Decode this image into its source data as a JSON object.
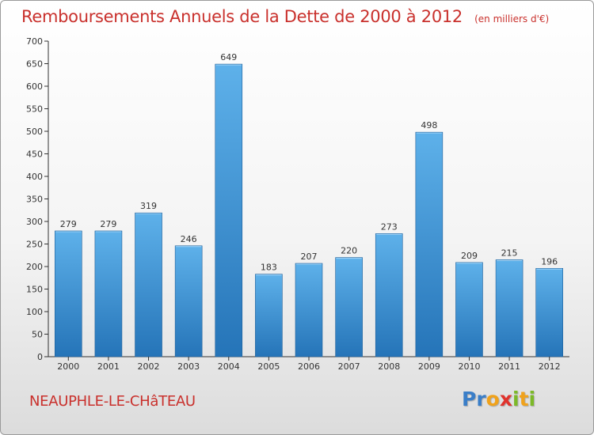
{
  "title": "Remboursements Annuels de la Dette de 2000 à 2012",
  "subtitle": "(en milliers d'€)",
  "commune": "NEAUPHLE-LE-CHâTEAU",
  "logo": {
    "letters": [
      "P",
      "r",
      "o",
      "x",
      "i",
      "t",
      "i"
    ],
    "colors": [
      "#3a7ec8",
      "#3a7ec8",
      "#f0a21b",
      "#e0322c",
      "#7cb928",
      "#f0a21b",
      "#7cb928"
    ],
    "icon": "proxiti-logo"
  },
  "colors": {
    "title": "#c9302c",
    "bar_top": "#5eb1ea",
    "bar_bottom": "#2574b8",
    "axis": "#333333"
  },
  "chart_data": {
    "type": "bar",
    "categories": [
      "2000",
      "2001",
      "2002",
      "2003",
      "2004",
      "2005",
      "2006",
      "2007",
      "2008",
      "2009",
      "2010",
      "2011",
      "2012"
    ],
    "values": [
      279,
      279,
      319,
      246,
      649,
      183,
      207,
      220,
      273,
      498,
      209,
      215,
      196
    ],
    "yticks": [
      0,
      50,
      100,
      150,
      200,
      250,
      300,
      350,
      400,
      450,
      500,
      550,
      600,
      650,
      700
    ],
    "ylim": [
      0,
      700
    ],
    "grid": false,
    "legend": "none",
    "data_labels": true
  }
}
